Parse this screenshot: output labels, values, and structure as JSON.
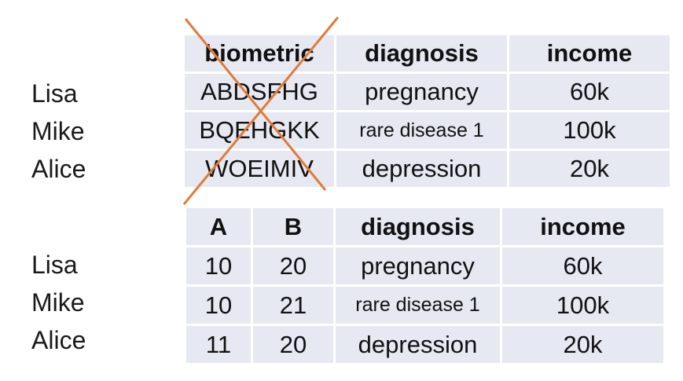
{
  "names_top": [
    "Lisa",
    "Mike",
    "Alice"
  ],
  "table1": {
    "headers": [
      "biometric",
      "diagnosis",
      "income"
    ],
    "rows": [
      [
        "ABDSFHG",
        "pregnancy",
        "60k"
      ],
      [
        "BQEHGKK",
        "rare disease 1",
        "100k"
      ],
      [
        "WOEIMIV",
        "depression",
        "20k"
      ]
    ]
  },
  "names_bottom": [
    "Lisa",
    "Mike",
    "Alice"
  ],
  "table2": {
    "headers": [
      "A",
      "B",
      "diagnosis",
      "income"
    ],
    "rows": [
      [
        "10",
        "20",
        "pregnancy",
        "60k"
      ],
      [
        "10",
        "21",
        "rare disease 1",
        "100k"
      ],
      [
        "11",
        "20",
        "depression",
        "20k"
      ]
    ]
  },
  "colors": {
    "cell_background": "#e6e8f2",
    "strike_color": "#e07b39"
  }
}
